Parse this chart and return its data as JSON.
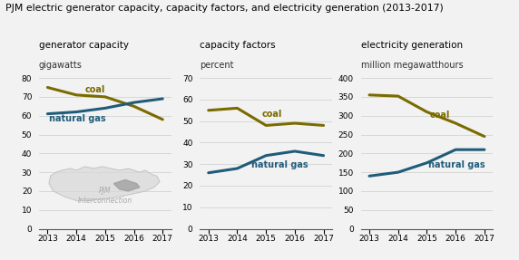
{
  "title": "PJM electric generator capacity, capacity factors, and electricity generation (2013-2017)",
  "years": [
    2013,
    2014,
    2015,
    2016,
    2017
  ],
  "chart1": {
    "subtitle1": "generator capacity",
    "subtitle2": "gigawatts",
    "ylim": [
      0,
      80
    ],
    "yticks": [
      0,
      10,
      20,
      30,
      40,
      50,
      60,
      70,
      80
    ],
    "coal": [
      75,
      71,
      70,
      65,
      58
    ],
    "gas": [
      61,
      62,
      64,
      67,
      69
    ]
  },
  "chart2": {
    "subtitle1": "capacity factors",
    "subtitle2": "percent",
    "ylim": [
      0,
      70
    ],
    "yticks": [
      0,
      10,
      20,
      30,
      40,
      50,
      60,
      70
    ],
    "coal": [
      55,
      56,
      48,
      49,
      48
    ],
    "gas": [
      26,
      28,
      34,
      36,
      34
    ]
  },
  "chart3": {
    "subtitle1": "electricity generation",
    "subtitle2": "million megawatthours",
    "ylim": [
      0,
      400
    ],
    "yticks": [
      0,
      50,
      100,
      150,
      200,
      250,
      300,
      350,
      400
    ],
    "coal": [
      355,
      352,
      310,
      280,
      245
    ],
    "gas": [
      140,
      150,
      175,
      210,
      210
    ]
  },
  "coal_color": "#7a6b00",
  "gas_color": "#1f5c7a",
  "bg_color": "#f2f2f2",
  "grid_color": "#cccccc",
  "line_width": 2.2,
  "title_fontsize": 7.8,
  "subtitle1_fontsize": 7.5,
  "subtitle2_fontsize": 7.0,
  "tick_fontsize": 6.5,
  "label_fontsize": 7.0,
  "map_text_color": "#aaaaaa",
  "map_face_color": "#d8d8d8"
}
